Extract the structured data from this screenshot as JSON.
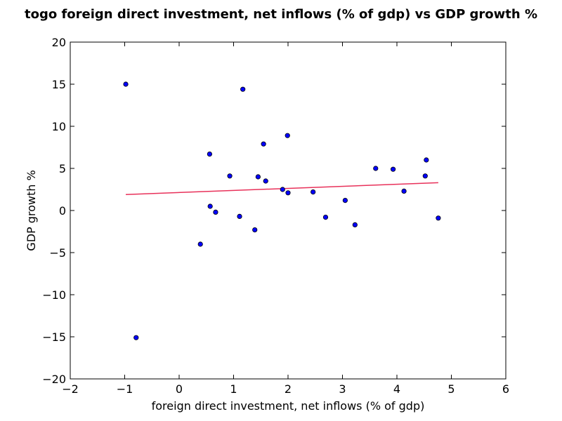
{
  "chart_data": {
    "type": "scatter",
    "title": "togo foreign direct investment, net inflows (% of gdp) vs GDP growth %",
    "xlabel": "foreign direct investment, net inflows (% of gdp)",
    "ylabel": "GDP growth %",
    "xlim": [
      -2,
      6
    ],
    "ylim": [
      -20,
      20
    ],
    "xticks": [
      -2,
      -1,
      0,
      1,
      2,
      3,
      4,
      5,
      6
    ],
    "yticks": [
      -20,
      -15,
      -10,
      -5,
      0,
      5,
      10,
      15,
      20
    ],
    "xtick_labels": [
      "−2",
      "−1",
      "0",
      "1",
      "2",
      "3",
      "4",
      "5",
      "6"
    ],
    "ytick_labels": [
      "−20",
      "−15",
      "−10",
      "−5",
      "0",
      "5",
      "10",
      "15",
      "20"
    ],
    "grid": false,
    "point_color": "#0000ff",
    "fit_color": "#e8315a",
    "points": [
      {
        "x": -0.98,
        "y": 15.0
      },
      {
        "x": -0.79,
        "y": -15.1
      },
      {
        "x": 0.39,
        "y": -4.0
      },
      {
        "x": 0.56,
        "y": 6.7
      },
      {
        "x": 0.57,
        "y": 0.5
      },
      {
        "x": 0.67,
        "y": -0.2
      },
      {
        "x": 0.93,
        "y": 4.1
      },
      {
        "x": 1.11,
        "y": -0.7
      },
      {
        "x": 1.17,
        "y": 14.4
      },
      {
        "x": 1.39,
        "y": -2.3
      },
      {
        "x": 1.45,
        "y": 4.0
      },
      {
        "x": 1.55,
        "y": 7.9
      },
      {
        "x": 1.59,
        "y": 3.5
      },
      {
        "x": 1.9,
        "y": 2.5
      },
      {
        "x": 1.99,
        "y": 8.9
      },
      {
        "x": 2.0,
        "y": 2.1
      },
      {
        "x": 2.46,
        "y": 2.2
      },
      {
        "x": 2.69,
        "y": -0.8
      },
      {
        "x": 3.05,
        "y": 1.2
      },
      {
        "x": 3.23,
        "y": -1.7
      },
      {
        "x": 3.61,
        "y": 5.0
      },
      {
        "x": 3.93,
        "y": 4.9
      },
      {
        "x": 4.13,
        "y": 2.3
      },
      {
        "x": 4.52,
        "y": 4.1
      },
      {
        "x": 4.54,
        "y": 6.0
      },
      {
        "x": 4.76,
        "y": -0.9
      }
    ],
    "fit_line": {
      "x": [
        -0.98,
        4.76
      ],
      "y": [
        1.9,
        3.3
      ]
    }
  }
}
